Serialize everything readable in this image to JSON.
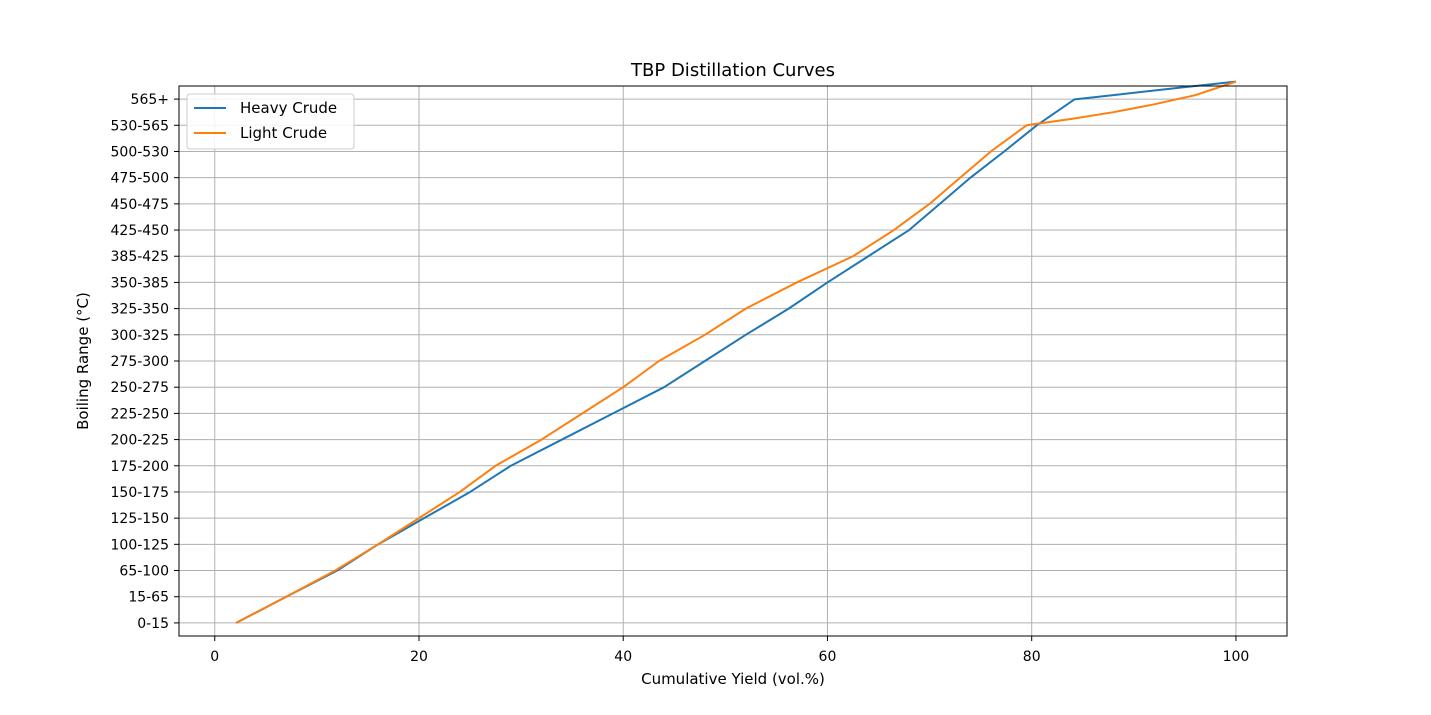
{
  "chart_data": {
    "type": "line",
    "title": "TBP Distillation Curves",
    "xlabel": "Cumulative Yield (vol.%)",
    "ylabel": "Boiling Range (°C)",
    "xlim": [
      -3.5,
      105
    ],
    "x_ticks": [
      0,
      20,
      40,
      60,
      80,
      100
    ],
    "y_categories": [
      "0-15",
      "15-65",
      "65-100",
      "100-125",
      "125-150",
      "150-175",
      "175-200",
      "200-225",
      "225-250",
      "250-275",
      "275-300",
      "300-325",
      "325-350",
      "350-385",
      "385-425",
      "425-450",
      "450-475",
      "475-500",
      "500-530",
      "530-565",
      "565+"
    ],
    "grid": true,
    "legend": "top-left",
    "series": [
      {
        "name": "Heavy Crude",
        "color": "#1f77b4",
        "x": [
          2.1,
          7,
          12,
          16,
          20.5,
          25,
          29,
          34,
          39,
          44,
          48,
          52,
          56.2,
          60,
          64,
          68,
          71,
          74,
          77.3,
          80.5,
          84.2,
          88,
          92,
          96,
          100
        ],
        "y": [
          0,
          1,
          2,
          3,
          4,
          5,
          6,
          7,
          8,
          9,
          10,
          11,
          12,
          13,
          14,
          15,
          16,
          17,
          18,
          19,
          19.99,
          20.15,
          20.33,
          20.5,
          20.667
        ]
      },
      {
        "name": "Light Crude",
        "color": "#ff7f0e",
        "x": [
          2.1,
          7,
          11.8,
          16,
          20,
          24,
          27.5,
          32,
          36,
          40,
          43.5,
          48,
          52,
          57,
          62.5,
          66.5,
          70,
          73,
          76,
          79.5,
          84,
          88,
          92,
          96,
          100
        ],
        "y": [
          0,
          1,
          2,
          3,
          4,
          5,
          6,
          7,
          8,
          9,
          10,
          11,
          12,
          13,
          14,
          15,
          16,
          17,
          18,
          19,
          19.25,
          19.5,
          19.8,
          20.15,
          20.667
        ]
      }
    ]
  }
}
